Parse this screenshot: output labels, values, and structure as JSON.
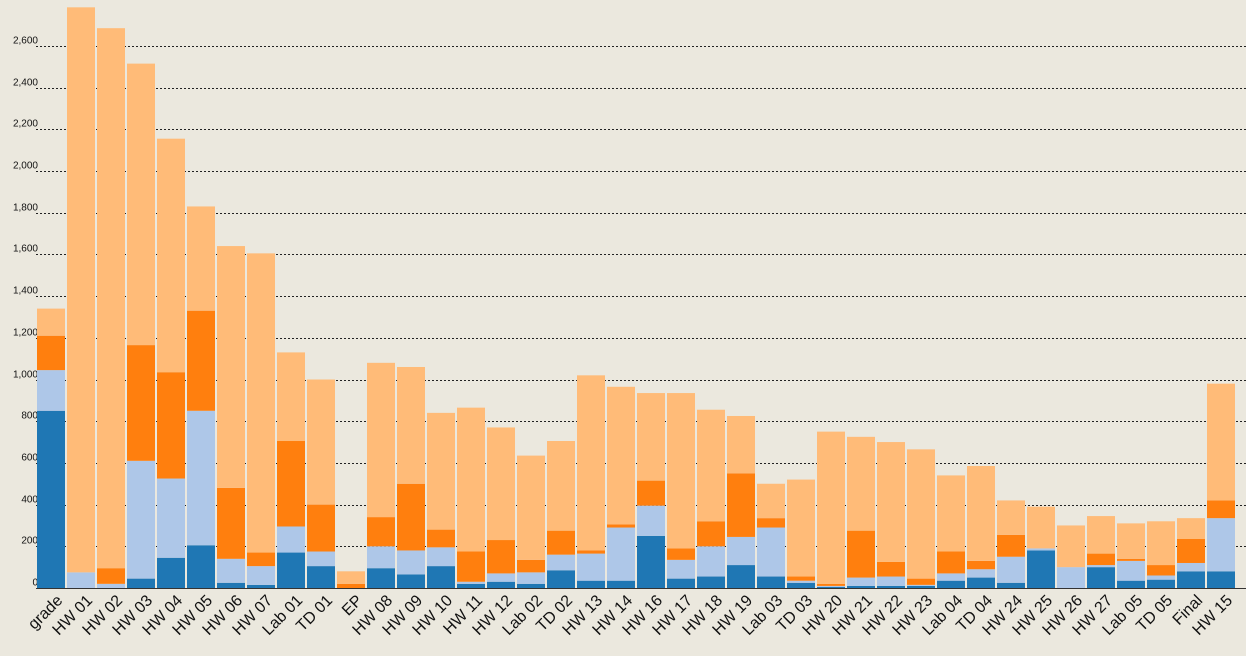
{
  "chart_data": {
    "type": "bar",
    "stacked": true,
    "categories": [
      "grade",
      "HW 01",
      "HW 02",
      "HW 03",
      "HW 04",
      "HW 05",
      "HW 06",
      "HW 07",
      "Lab 01",
      "TD 01",
      "EP",
      "HW 08",
      "HW 09",
      "HW 10",
      "HW 11",
      "HW 12",
      "Lab 02",
      "TD 02",
      "HW 13",
      "HW 14",
      "HW 16",
      "HW 17",
      "HW 18",
      "HW 19",
      "Lab 03",
      "TD 03",
      "HW 20",
      "HW 21",
      "HW 22",
      "HW 23",
      "Lab 04",
      "TD 04",
      "HW 24",
      "HW 25",
      "HW 26",
      "HW 27",
      "Lab 05",
      "TD 05",
      "Final",
      "HW 15"
    ],
    "series": [
      {
        "color": "#1f77b4",
        "values": [
          850,
          0,
          0,
          45,
          145,
          205,
          25,
          15,
          170,
          105,
          0,
          95,
          65,
          105,
          20,
          30,
          20,
          85,
          35,
          35,
          250,
          45,
          55,
          110,
          55,
          25,
          5,
          10,
          10,
          10,
          35,
          50,
          25,
          180,
          0,
          100,
          35,
          40,
          80,
          80
        ]
      },
      {
        "color": "#aec7e8",
        "values": [
          195,
          75,
          20,
          565,
          380,
          645,
          115,
          90,
          125,
          70,
          0,
          105,
          115,
          90,
          10,
          40,
          55,
          75,
          130,
          255,
          145,
          90,
          145,
          135,
          235,
          10,
          5,
          40,
          45,
          5,
          35,
          40,
          125,
          10,
          100,
          10,
          95,
          20,
          40,
          255
        ]
      },
      {
        "color": "#ff7f0e",
        "values": [
          165,
          0,
          75,
          555,
          510,
          480,
          340,
          65,
          410,
          225,
          20,
          140,
          320,
          85,
          145,
          160,
          60,
          115,
          15,
          15,
          120,
          55,
          120,
          305,
          45,
          20,
          10,
          225,
          70,
          30,
          105,
          40,
          105,
          0,
          0,
          55,
          10,
          50,
          115,
          85
        ]
      },
      {
        "color": "#ffbb78",
        "values": [
          130,
          2710,
          2590,
          1350,
          1120,
          500,
          1160,
          1435,
          425,
          600,
          60,
          740,
          560,
          560,
          690,
          540,
          500,
          430,
          840,
          660,
          420,
          745,
          535,
          275,
          165,
          465,
          730,
          450,
          575,
          620,
          365,
          455,
          165,
          200,
          200,
          180,
          170,
          210,
          100,
          560
        ]
      }
    ],
    "ylim": [
      0,
      2800
    ],
    "yticks": [
      0,
      200,
      400,
      600,
      800,
      1000,
      1200,
      1400,
      1600,
      1800,
      2000,
      2200,
      2400,
      2600
    ],
    "ytick_labels": [
      "0",
      "200",
      "400",
      "600",
      "800",
      "1,000",
      "1,200",
      "1,400",
      "1,600",
      "1,800",
      "2,000",
      "2,200",
      "2,400",
      "2,600"
    ],
    "grid": true,
    "title": "",
    "xlabel": "",
    "ylabel": ""
  }
}
